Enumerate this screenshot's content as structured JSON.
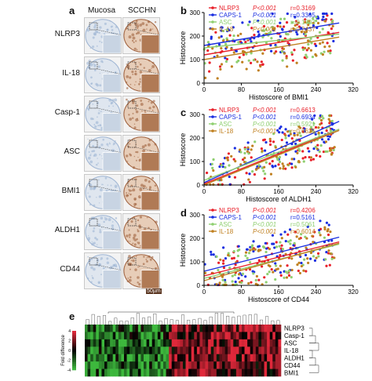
{
  "panel_a": {
    "letter": "a",
    "columns": [
      "Mucosa",
      "SCCHN"
    ],
    "rows": [
      "NLRP3",
      "IL-18",
      "Casp-1",
      "ASC",
      "BMI1",
      "ALDH1",
      "CD44"
    ],
    "scale_bar": "50µm",
    "colors": {
      "mucosa_stain": "#9fb5d3",
      "scchn_stain": "#a0623e"
    }
  },
  "panel_b": {
    "letter": "b"
  },
  "panel_c": {
    "letter": "c"
  },
  "panel_d": {
    "letter": "d"
  },
  "panel_e": {
    "letter": "e",
    "colorbar_label": "Fold difference",
    "colorbar_ticks": [
      "-4",
      "-2",
      "0",
      "2",
      "4"
    ],
    "row_labels": [
      "NLRP3",
      "Casp-1",
      "ASC",
      "IL-18",
      "ALDH1",
      "CD44",
      "BMI1"
    ],
    "colors": {
      "low": "#3db83d",
      "mid": "#000000",
      "high": "#e0283a"
    }
  },
  "chart_data": [
    {
      "type": "scatter",
      "panel": "b",
      "xlabel": "Histoscore of BMI1",
      "ylabel": "Histoscore",
      "xlim": [
        0,
        320
      ],
      "ylim": [
        0,
        300
      ],
      "xticks": [
        "0",
        "80",
        "160",
        "240",
        "320"
      ],
      "yticks": [
        "0",
        "100",
        "200",
        "300"
      ],
      "legend_position": "top",
      "series": [
        {
          "name": "NLRP3",
          "color": "#e8202a",
          "p": "P<0.001",
          "r": "r=0.3169",
          "slope": 0.33,
          "intercept": 120
        },
        {
          "name": "CAPS-1",
          "color": "#1a2ee0",
          "p": "P<0.001",
          "r": "r=0.3365",
          "slope": 0.33,
          "intercept": 160
        },
        {
          "name": "ASC",
          "color": "#8fcf70",
          "p": "P<0.001",
          "r": "r=0.1703",
          "slope": 0.2,
          "intercept": 150
        },
        {
          "name": "IL-18",
          "color": "#c08020",
          "p": "P<0.001",
          "r": "r=0.2437",
          "slope": 0.33,
          "intercept": 100
        }
      ]
    },
    {
      "type": "scatter",
      "panel": "c",
      "xlabel": "Histoscore of ALDH1",
      "ylabel": "Histoscore",
      "xlim": [
        0,
        320
      ],
      "ylim": [
        0,
        300
      ],
      "xticks": [
        "0",
        "80",
        "160",
        "240",
        "320"
      ],
      "yticks": [
        "0",
        "100",
        "200",
        "300"
      ],
      "legend_position": "top",
      "series": [
        {
          "name": "NLRP3",
          "color": "#e8202a",
          "p": "P<0.001",
          "r": "r=0.6613",
          "slope": 0.8,
          "intercept": 5
        },
        {
          "name": "CAPS-1",
          "color": "#1a2ee0",
          "p": "P<0.001",
          "r": "r=0.6934",
          "slope": 0.9,
          "intercept": 10
        },
        {
          "name": "ASC",
          "color": "#8fcf70",
          "p": "P<0.001",
          "r": "r=0.5921",
          "slope": 0.75,
          "intercept": 20
        },
        {
          "name": "IL-18",
          "color": "#c08020",
          "p": "P<0.001",
          "r": "r=0.6625",
          "slope": 0.8,
          "intercept": 0
        }
      ]
    },
    {
      "type": "scatter",
      "panel": "d",
      "xlabel": "Histoscore of CD44",
      "ylabel": "Histoscore",
      "xlim": [
        0,
        320
      ],
      "ylim": [
        0,
        300
      ],
      "xticks": [
        "0",
        "80",
        "160",
        "240",
        "320"
      ],
      "yticks": [
        "0",
        "100",
        "200",
        "300"
      ],
      "legend_position": "top",
      "series": [
        {
          "name": "NLRP3",
          "color": "#e8202a",
          "p": "P<0.001",
          "r": "r=0.4206",
          "slope": 0.5,
          "intercept": 40
        },
        {
          "name": "CAPS-1",
          "color": "#1a2ee0",
          "p": "P<0.001",
          "r": "r=0.5161",
          "slope": 0.5,
          "intercept": 60
        },
        {
          "name": "ASC",
          "color": "#8fcf70",
          "p": "P<0.001",
          "r": "r=0.5061",
          "slope": 0.5,
          "intercept": 30
        },
        {
          "name": "IL-18",
          "color": "#c08020",
          "p": "P<0.001",
          "r": "r=0.6014",
          "slope": 0.55,
          "intercept": 20
        }
      ]
    }
  ]
}
